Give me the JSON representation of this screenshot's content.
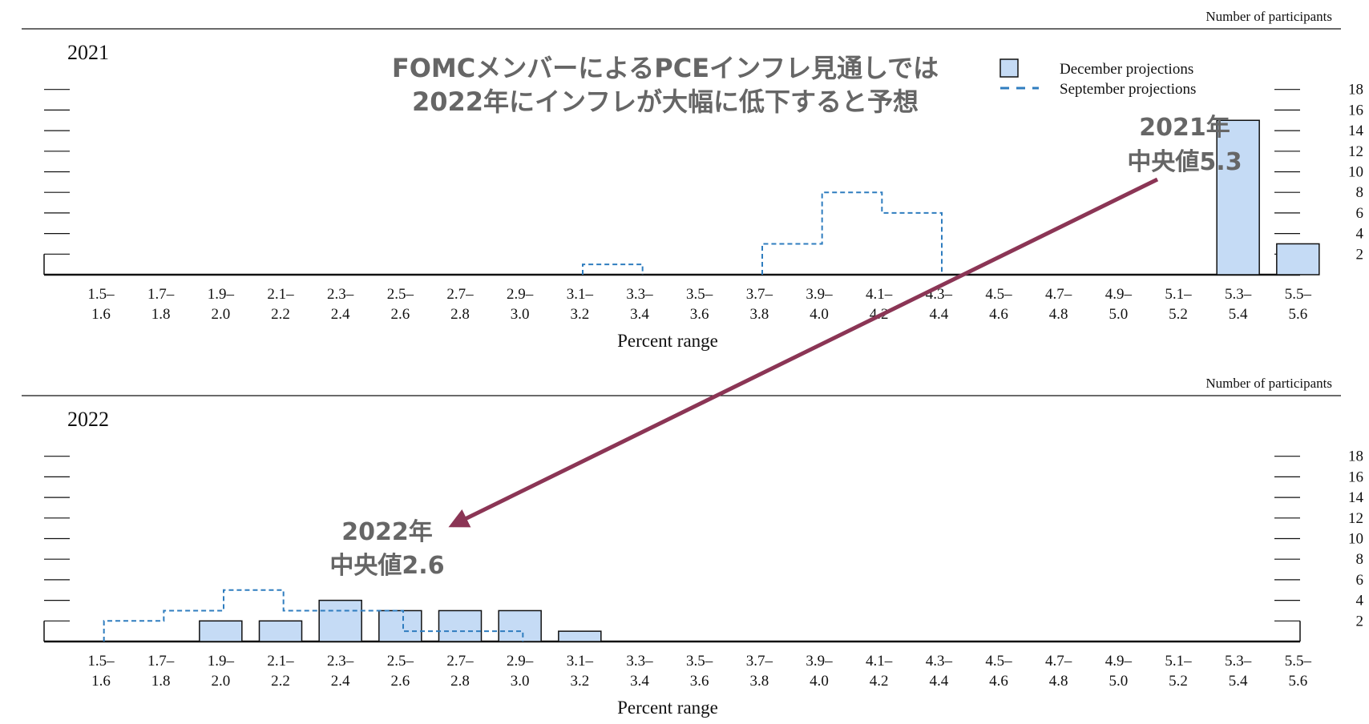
{
  "headline": {
    "line1": "FOMCメンバーによるPCEインフレ見通しでは",
    "line2": "2022年にインフレが大幅に低下すると予想"
  },
  "legend": {
    "december": "December projections",
    "september": "September projections"
  },
  "annotations": {
    "median_2021_line1": "2021年",
    "median_2021_line2": "中央値5.3",
    "median_2022_line1": "2022年",
    "median_2022_line2": "中央値2.6"
  },
  "colors": {
    "bar_fill": "#c5dbf5",
    "bar_stroke": "#111111",
    "september_dash": "#2f7dbf",
    "arrow": "#8b3555",
    "headline_text": "#666666"
  },
  "chart_data": [
    {
      "type": "bar",
      "title": "2021",
      "xlabel": "Percent range",
      "ylabel": "Number of participants",
      "ylim": [
        0,
        18
      ],
      "yticks": [
        "2",
        "4",
        "6",
        "8",
        "10",
        "12",
        "14",
        "16",
        "18"
      ],
      "categories": [
        "1.5–1.6",
        "1.7–1.8",
        "1.9–2.0",
        "2.1–2.2",
        "2.3–2.4",
        "2.5–2.6",
        "2.7–2.8",
        "2.9–3.0",
        "3.1–3.2",
        "3.3–3.4",
        "3.5–3.6",
        "3.7–3.8",
        "3.9–4.0",
        "4.1–4.2",
        "4.3–4.4",
        "4.5–4.6",
        "4.7–4.8",
        "4.9–5.0",
        "5.1–5.2",
        "5.3–5.4",
        "5.5–5.6"
      ],
      "tick_top": [
        "1.5–",
        "1.7–",
        "1.9–",
        "2.1–",
        "2.3–",
        "2.5–",
        "2.7–",
        "2.9–",
        "3.1–",
        "3.3–",
        "3.5–",
        "3.7–",
        "3.9–",
        "4.1–",
        "4.3–",
        "4.5–",
        "4.7–",
        "4.9–",
        "5.1–",
        "5.3–",
        "5.5–"
      ],
      "tick_bottom": [
        "1.6",
        "1.8",
        "2.0",
        "2.2",
        "2.4",
        "2.6",
        "2.8",
        "3.0",
        "3.2",
        "3.4",
        "3.6",
        "3.8",
        "4.0",
        "4.2",
        "4.4",
        "4.6",
        "4.8",
        "5.0",
        "5.2",
        "5.4",
        "5.6"
      ],
      "series": [
        {
          "name": "December projections",
          "values": [
            0,
            0,
            0,
            0,
            0,
            0,
            0,
            0,
            0,
            0,
            0,
            0,
            0,
            0,
            0,
            0,
            0,
            0,
            0,
            15,
            3
          ]
        },
        {
          "name": "September projections",
          "values": [
            0,
            0,
            0,
            0,
            0,
            0,
            0,
            0,
            0,
            1,
            0,
            0,
            3,
            8,
            6,
            0,
            0,
            0,
            0,
            0,
            0
          ]
        }
      ]
    },
    {
      "type": "bar",
      "title": "2022",
      "xlabel": "Percent range",
      "ylabel": "Number of participants",
      "ylim": [
        0,
        18
      ],
      "yticks": [
        "2",
        "4",
        "6",
        "8",
        "10",
        "12",
        "14",
        "16",
        "18"
      ],
      "categories": [
        "1.5–1.6",
        "1.7–1.8",
        "1.9–2.0",
        "2.1–2.2",
        "2.3–2.4",
        "2.5–2.6",
        "2.7–2.8",
        "2.9–3.0",
        "3.1–3.2",
        "3.3–3.4",
        "3.5–3.6",
        "3.7–3.8",
        "3.9–4.0",
        "4.1–4.2",
        "4.3–4.4",
        "4.5–4.6",
        "4.7–4.8",
        "4.9–5.0",
        "5.1–5.2",
        "5.3–5.4",
        "5.5–5.6"
      ],
      "tick_top": [
        "1.5–",
        "1.7–",
        "1.9–",
        "2.1–",
        "2.3–",
        "2.5–",
        "2.7–",
        "2.9–",
        "3.1–",
        "3.3–",
        "3.5–",
        "3.7–",
        "3.9–",
        "4.1–",
        "4.3–",
        "4.5–",
        "4.7–",
        "4.9–",
        "5.1–",
        "5.3–",
        "5.5–"
      ],
      "tick_bottom": [
        "1.6",
        "1.8",
        "2.0",
        "2.2",
        "2.4",
        "2.6",
        "2.8",
        "3.0",
        "3.2",
        "3.4",
        "3.6",
        "3.8",
        "4.0",
        "4.2",
        "4.4",
        "4.6",
        "4.8",
        "5.0",
        "5.2",
        "5.4",
        "5.6"
      ],
      "series": [
        {
          "name": "December projections",
          "values": [
            0,
            0,
            2,
            2,
            4,
            3,
            3,
            3,
            1,
            0,
            0,
            0,
            0,
            0,
            0,
            0,
            0,
            0,
            0,
            0,
            0
          ]
        },
        {
          "name": "September projections",
          "values": [
            0,
            2,
            3,
            5,
            3,
            3,
            1,
            1,
            0,
            0,
            0,
            0,
            0,
            0,
            0,
            0,
            0,
            0,
            0,
            0,
            0
          ]
        }
      ]
    }
  ]
}
